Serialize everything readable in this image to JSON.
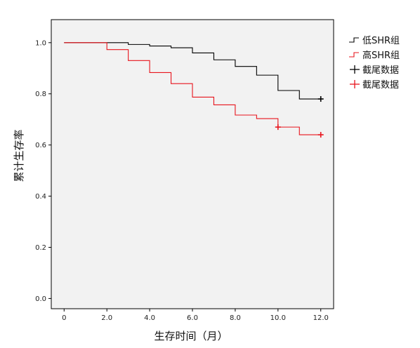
{
  "chart_data": {
    "type": "line",
    "step": true,
    "xlabel": "生存时间（月）",
    "ylabel": "累计生存率",
    "xlim": [
      -0.6,
      12.6
    ],
    "ylim": [
      -0.04,
      1.09
    ],
    "x_ticks": [
      0,
      2,
      4,
      6,
      8,
      10,
      12
    ],
    "x_tick_labels": [
      "0",
      "2.0",
      "4.0",
      "6.0",
      "8.0",
      "10.0",
      "12.0"
    ],
    "y_ticks": [
      0,
      0.2,
      0.4,
      0.6,
      0.8,
      1.0
    ],
    "y_tick_labels": [
      "0.0",
      "0.2",
      "0.4",
      "0.6",
      "0.8",
      "1.0"
    ],
    "grid": false,
    "legend_position": "top-right",
    "plot_background": "#f2f2f2",
    "series": [
      {
        "name": "低SHR组",
        "color": "#000000",
        "x": [
          0,
          3,
          4,
          5,
          6,
          7,
          8,
          9,
          10,
          11,
          12
        ],
        "y": [
          1.0,
          0.993,
          0.987,
          0.98,
          0.96,
          0.933,
          0.907,
          0.873,
          0.813,
          0.78,
          0.78
        ],
        "censored": [
          {
            "x": 12,
            "y": 0.78
          }
        ]
      },
      {
        "name": "高SHR组",
        "color": "#e8141c",
        "x": [
          0,
          2,
          3,
          4,
          5,
          6,
          7,
          8,
          9,
          10,
          11,
          12
        ],
        "y": [
          1.0,
          0.973,
          0.93,
          0.883,
          0.84,
          0.787,
          0.757,
          0.717,
          0.703,
          0.67,
          0.64,
          0.64
        ],
        "censored": [
          {
            "x": 10,
            "y": 0.67
          },
          {
            "x": 12,
            "y": 0.64
          }
        ]
      }
    ],
    "legend": [
      {
        "label": "低SHR组",
        "marker": "step-line",
        "color": "#000000"
      },
      {
        "label": "高SHR组",
        "marker": "step-line",
        "color": "#e8141c"
      },
      {
        "label": "截尾数据",
        "marker": "plus",
        "color": "#000000"
      },
      {
        "label": "截尾数据",
        "marker": "plus",
        "color": "#e8141c"
      }
    ]
  }
}
